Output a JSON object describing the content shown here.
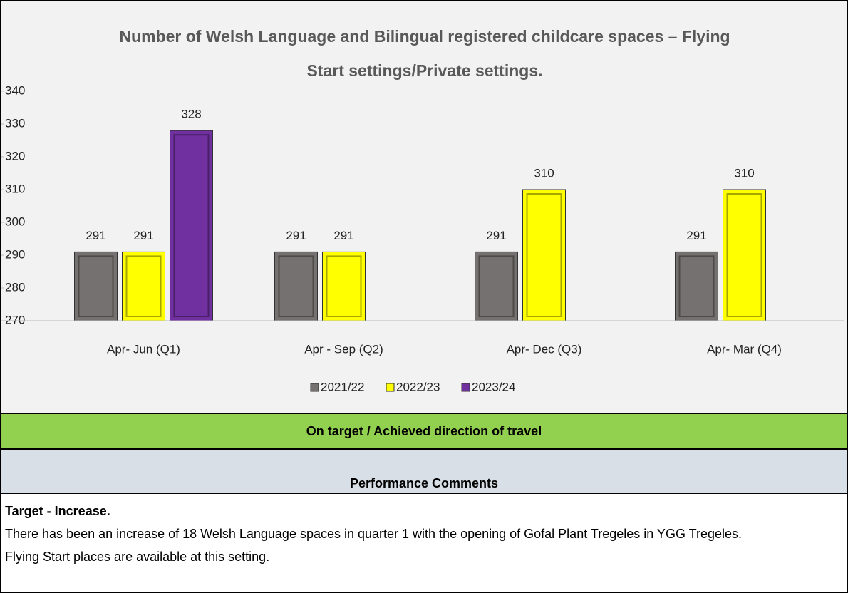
{
  "chart_data": {
    "type": "bar",
    "title": "Number of Welsh Language and Bilingual registered childcare spaces – Flying Start settings/Private settings.",
    "categories": [
      "Apr- Jun  (Q1)",
      "Apr - Sep  (Q2)",
      "Apr- Dec  (Q3)",
      "Apr- Mar  (Q4)"
    ],
    "series": [
      {
        "name": "2021/22",
        "color": "#767171",
        "values": [
          291,
          291,
          291,
          291
        ]
      },
      {
        "name": "2022/23",
        "color": "#ffff00",
        "values": [
          291,
          291,
          310,
          310
        ]
      },
      {
        "name": "2023/24",
        "color": "#7030a0",
        "values": [
          328,
          null,
          null,
          null
        ]
      }
    ],
    "ylim": [
      270,
      340
    ],
    "yticks": [
      270,
      280,
      290,
      300,
      310,
      320,
      330,
      340
    ],
    "legend": "bottom"
  },
  "status": "On target / Achieved direction of travel",
  "comments": {
    "header": "Performance Comments",
    "title": "Target - Increase.",
    "lines": [
      "There has been an increase of 18 Welsh Language spaces in quarter 1 with the opening of Gofal Plant Tregeles in YGG Tregeles.",
      "Flying Start places are available at this setting."
    ]
  }
}
